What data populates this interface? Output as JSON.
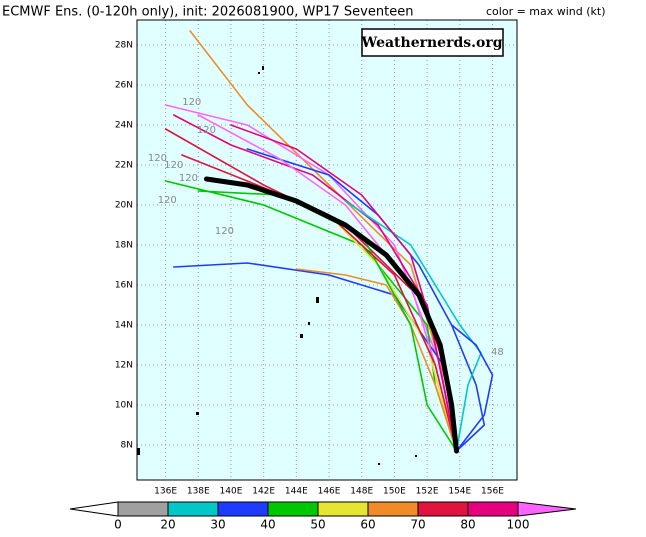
{
  "title": "ECMWF Ens. (0-120h only), init: 2026081900, WP17 Seventeen",
  "legend_title": "color = max wind (kt)",
  "watermark": "Weathernerds.org",
  "map": {
    "lon_range": [
      134.25,
      157.5
    ],
    "lat_range": [
      6.25,
      29.25
    ],
    "background": "#e0ffff",
    "grid": true,
    "lon_ticks": [
      {
        "value": 136,
        "label": "136E"
      },
      {
        "value": 138,
        "label": "138E"
      },
      {
        "value": 140,
        "label": "140E"
      },
      {
        "value": 142,
        "label": "142E"
      },
      {
        "value": 144,
        "label": "144E"
      },
      {
        "value": 146,
        "label": "146E"
      },
      {
        "value": 148,
        "label": "148E"
      },
      {
        "value": 150,
        "label": "150E"
      },
      {
        "value": 152,
        "label": "152E"
      },
      {
        "value": 154,
        "label": "154E"
      },
      {
        "value": 156,
        "label": "156E"
      }
    ],
    "lat_ticks": [
      {
        "value": 8,
        "label": "8N"
      },
      {
        "value": 10,
        "label": "10N"
      },
      {
        "value": 12,
        "label": "12N"
      },
      {
        "value": 14,
        "label": "14N"
      },
      {
        "value": 16,
        "label": "16N"
      },
      {
        "value": 18,
        "label": "18N"
      },
      {
        "value": 20,
        "label": "20N"
      },
      {
        "value": 22,
        "label": "22N"
      },
      {
        "value": 24,
        "label": "24N"
      },
      {
        "value": 26,
        "label": "26N"
      },
      {
        "value": 28,
        "label": "28N"
      }
    ]
  },
  "tracks": [
    {
      "color": "#f08c28",
      "lon": [
        153.8,
        153.2,
        151,
        146,
        141,
        137.5
      ],
      "lat": [
        7.7,
        11,
        17,
        21,
        25,
        28.7
      ]
    },
    {
      "color": "#e0143c",
      "lon": [
        153.8,
        153,
        152,
        147,
        142,
        136
      ],
      "lat": [
        7.7,
        11,
        15,
        19,
        21,
        23.8
      ]
    },
    {
      "color": "#ff64ff",
      "lon": [
        153.8,
        152.8,
        150,
        146,
        141,
        136
      ],
      "lat": [
        7.7,
        12,
        18,
        21.5,
        24,
        25
      ]
    },
    {
      "color": "#1e3cff",
      "lon": [
        153.8,
        153,
        150,
        146,
        141,
        136.5
      ],
      "lat": [
        7.7,
        12,
        15.5,
        16.5,
        17.1,
        16.9
      ]
    },
    {
      "color": "#1e3cff",
      "lon": [
        153.8,
        155.5,
        155,
        153.5,
        151.5,
        149,
        146,
        141
      ],
      "lat": [
        7.7,
        9,
        11,
        14,
        17,
        19.5,
        21.5,
        22.8
      ]
    },
    {
      "color": "#00c800",
      "lon": [
        153.8,
        152.5,
        152,
        148,
        142,
        136
      ],
      "lat": [
        7.7,
        11,
        14,
        18,
        20,
        21.2
      ]
    },
    {
      "color": "#e6007e",
      "lon": [
        153.8,
        153,
        152,
        149,
        145,
        140,
        136.5
      ],
      "lat": [
        7.7,
        11,
        15,
        19,
        21.5,
        23,
        24.5
      ]
    },
    {
      "color": "#e6e632",
      "lon": [
        153.8,
        153,
        152,
        149,
        146,
        143
      ],
      "lat": [
        7.7,
        10,
        13,
        17,
        19.5,
        20.5
      ]
    },
    {
      "color": "#00c8c8",
      "lon": [
        153.8,
        154.5,
        155.3,
        154,
        151,
        147
      ],
      "lat": [
        7.7,
        11,
        12.6,
        14,
        18,
        20.2
      ]
    },
    {
      "color": "#ff64ff",
      "lon": [
        153.8,
        152.5,
        151,
        147,
        143,
        138
      ],
      "lat": [
        7.7,
        12,
        16,
        20,
        22.3,
        24.5
      ]
    },
    {
      "color": "#f08c28",
      "lon": [
        153.8,
        152.5,
        151,
        149.5,
        147,
        144
      ],
      "lat": [
        7.7,
        11,
        14,
        16,
        16.5,
        16.8
      ]
    },
    {
      "color": "#e6007e",
      "lon": [
        153.8,
        153,
        151,
        148,
        144,
        140
      ],
      "lat": [
        7.7,
        12,
        17.5,
        20.5,
        22.8,
        24
      ]
    },
    {
      "color": "#1e3cff",
      "lon": [
        153.8,
        155.5,
        156,
        155,
        153.5
      ],
      "lat": [
        7.7,
        9.5,
        11.5,
        13,
        14
      ]
    },
    {
      "color": "#00c800",
      "lon": [
        153.8,
        152,
        151,
        148,
        143,
        138
      ],
      "lat": [
        7.7,
        10,
        14,
        18.5,
        20.5,
        20.7
      ]
    },
    {
      "color": "#e0143c",
      "lon": [
        153.8,
        152.5,
        150,
        146,
        141,
        137
      ],
      "lat": [
        7.7,
        12,
        16.5,
        19.5,
        21.2,
        22.5
      ]
    }
  ],
  "mean_track": {
    "color": "#000000",
    "lon": [
      153.8,
      153.5,
      152.8,
      151.5,
      149.5,
      147,
      144,
      141,
      138.5
    ],
    "lat": [
      7.7,
      10,
      13,
      15.5,
      17.5,
      19,
      20.2,
      21,
      21.3
    ]
  },
  "hour_labels": [
    {
      "text": "120",
      "lon": 137.6,
      "lat": 25.15
    },
    {
      "text": "120",
      "lon": 138.5,
      "lat": 23.75
    },
    {
      "text": "120",
      "lon": 135.5,
      "lat": 22.35
    },
    {
      "text": "120",
      "lon": 136.5,
      "lat": 22
    },
    {
      "text": "120",
      "lon": 137.4,
      "lat": 21.35
    },
    {
      "text": "120",
      "lon": 136.1,
      "lat": 20.25
    },
    {
      "text": "120",
      "lon": 139.6,
      "lat": 18.7
    },
    {
      "text": "48",
      "lon": 156.3,
      "lat": 12.65
    }
  ],
  "colorbar": {
    "bounds": [
      0,
      20,
      30,
      40,
      50,
      60,
      70,
      80,
      100
    ],
    "colors": [
      "#a0a0a0",
      "#00c8c8",
      "#1e3cff",
      "#00c800",
      "#e6e632",
      "#f08c28",
      "#e0143c",
      "#e6007e"
    ],
    "under_color": "#ffffff",
    "over_color": "#ff64ff"
  }
}
